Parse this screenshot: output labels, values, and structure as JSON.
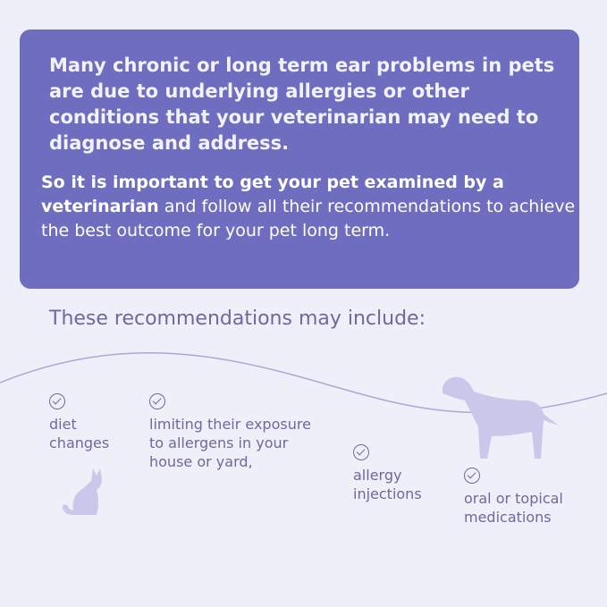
{
  "intro": "Many chronic or long term ear problems in pets are due to underlying allergies or other conditions that your veterinarian may need to diagnose and address.",
  "emphasis_bold": "So it is important to get your pet examined by a veterinarian",
  "emphasis_rest": " and follow all their recommendations to achieve the best outcome for your pet long term.",
  "heading": "These recommendations may include:",
  "items": [
    {
      "label": "diet changes"
    },
    {
      "label": "limiting their exposure to allergens in your house or yard,"
    },
    {
      "label": "allergy injections"
    },
    {
      "label": "oral or topical medications"
    }
  ],
  "colors": {
    "box": "#6e6dbf",
    "background": "#efeff9",
    "text": "#6b6a9e",
    "illustration": "#c9c8ea"
  }
}
